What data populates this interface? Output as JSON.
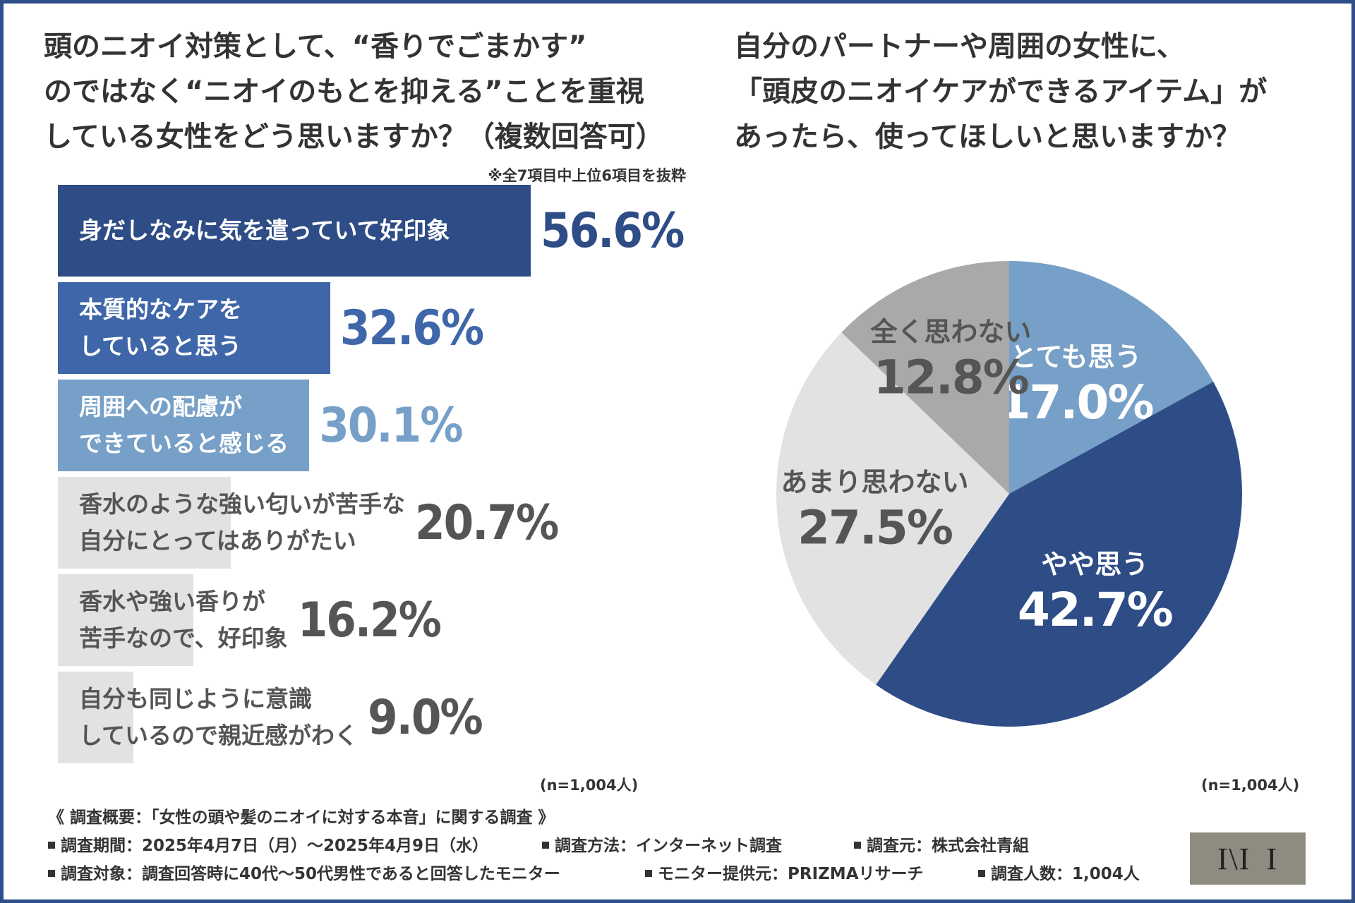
{
  "left_title_lines": [
    "頭のニオイ対策として、“香りでごまかす”",
    "のではなく“ニオイのもとを抑える”ことを重視",
    "している女性をどう思いますか？（複数回答可）"
  ],
  "right_title_lines": [
    "自分のパートナーや周囲の女性に、",
    "「頭皮のニオイケアができるアイテム」が",
    "あったら、使ってほしいと思いますか？"
  ],
  "bar_note": "※全7項目中上位6項目を抜粋",
  "n_left": "(n=1,004人)",
  "n_right": "(n=1,004人)",
  "colors": {
    "dark_blue": "#2e4c86",
    "mid_blue": "#3e66a9",
    "light_blue": "#77a0c8",
    "light_gray": "#e2e2e2",
    "mid_gray": "#a9a9a9",
    "text_gray": "#555555",
    "frame": "#2f4f8a"
  },
  "chart_data": [
    {
      "type": "bar",
      "orientation": "horizontal",
      "title": "頭のニオイ対策として、“香りでごまかす”のではなく“ニオイのもとを抑える”ことを重視している女性をどう思いますか？（複数回答可）",
      "categories": [
        [
          "身だしなみに気を遣っていて好印象"
        ],
        [
          "本質的なケアを",
          "していると思う"
        ],
        [
          "周囲への配慮が",
          "できていると感じる"
        ],
        [
          "香水のような強い匂いが苦手な",
          "自分にとってはありがたい"
        ],
        [
          "香水や強い香りが",
          "苦手なので、好印象"
        ],
        [
          "自分も同じように意識",
          "しているので親近感がわく"
        ]
      ],
      "values": [
        56.6,
        32.6,
        30.1,
        20.7,
        16.2,
        9.0
      ],
      "value_labels": [
        "56.6%",
        "32.6%",
        "30.1%",
        "20.7%",
        "16.2%",
        "9.0%"
      ],
      "bar_colors": [
        "#2e4c86",
        "#3e66a9",
        "#77a0c8",
        "#e2e2e2",
        "#e2e2e2",
        "#e2e2e2"
      ],
      "label_colors": [
        "#ffffff",
        "#ffffff",
        "#ffffff",
        "#555555",
        "#555555",
        "#555555"
      ],
      "value_colors": [
        "#2e4c86",
        "#3e66a9",
        "#77a0c8",
        "#555555",
        "#555555",
        "#555555"
      ],
      "xlim": [
        0,
        56.6
      ],
      "unit": "%",
      "n": "(n=1,004人)"
    },
    {
      "type": "pie",
      "title": "自分のパートナーや周囲の女性に、「頭皮のニオイケアができるアイテム」があったら、使ってほしいと思いますか？",
      "slices": [
        {
          "label": "とても思う",
          "value": 17.0,
          "value_label": "17.0%",
          "color": "#77a0c8",
          "text_color": "#ffffff"
        },
        {
          "label": "やや思う",
          "value": 42.7,
          "value_label": "42.7%",
          "color": "#2e4c86",
          "text_color": "#ffffff"
        },
        {
          "label": "あまり思わない",
          "value": 27.5,
          "value_label": "27.5%",
          "color": "#e2e2e2",
          "text_color": "#555555"
        },
        {
          "label": "全く思わない",
          "value": 12.8,
          "value_label": "12.8%",
          "color": "#a9a9a9",
          "text_color": "#555555"
        }
      ],
      "start": "top",
      "direction": "clockwise",
      "n": "(n=1,004人)"
    }
  ],
  "footer": {
    "heading": "《 調査概要：「女性の頭や髪のニオイに対する本音」に関する調査 》",
    "period": "調査期間：2025年4月7日（月）～2025年4月9日（水）",
    "method": "調査方法：インターネット調査",
    "source": "調査元：株式会社青組",
    "target": "調査対象：調査回答時に40代～50代男性であると回答したモニター",
    "provider": "モニター提供元：PRIZMAリサーチ",
    "count": "調査人数：1,004人"
  }
}
